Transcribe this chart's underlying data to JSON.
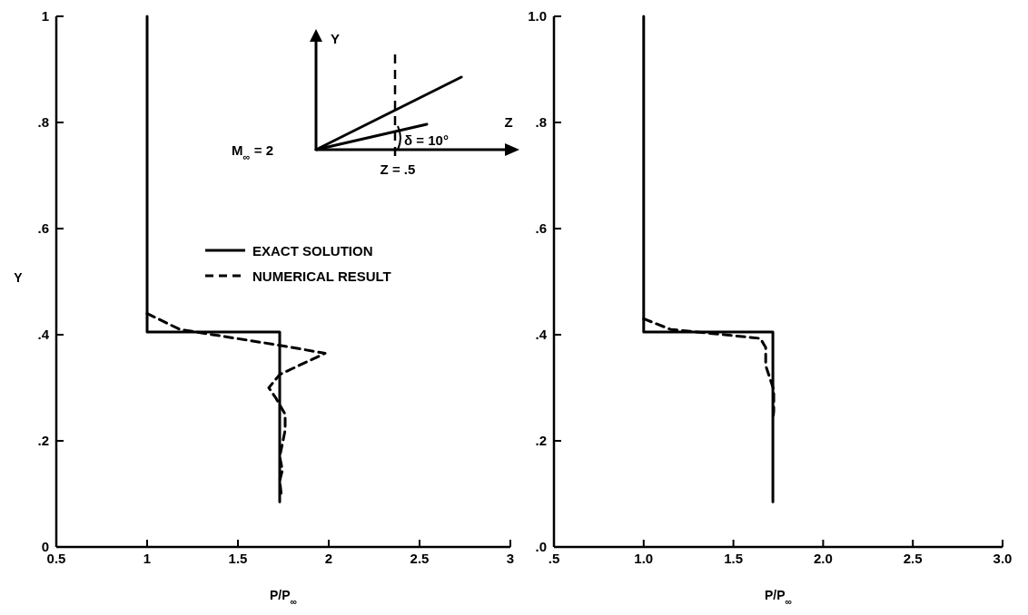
{
  "chart_data": [
    {
      "type": "line",
      "xlabel": "P/P$_{∞}$",
      "ylabel": "Y",
      "xlim": [
        0.5,
        3
      ],
      "ylim": [
        0,
        1
      ],
      "xticks": [
        0.5,
        1,
        1.5,
        2,
        2.5,
        3
      ],
      "yticks": [
        0,
        {
          "value": 0.2,
          "label": ".2"
        },
        {
          "value": 0.4,
          "label": ".4"
        },
        {
          "value": 0.6,
          "label": ".6"
        },
        {
          "value": 0.8,
          "label": ".8"
        },
        1
      ],
      "legend": "center",
      "annotations": [
        "Y",
        "Z",
        "M$_{∞}$ = 2",
        "δ = 10°",
        "Z = .5"
      ],
      "series": [
        {
          "name": "EXACT SOLUTION",
          "color": "#000000",
          "line_style": "solid",
          "x": [
            1,
            1,
            1.73,
            1.73
          ],
          "values": [
            1,
            0.405,
            0.405,
            0.085
          ]
        },
        {
          "name": "NUMERICAL RESULT",
          "color": "#000000",
          "line_style": "dashed",
          "x": [
            1,
            1.18,
            1.73,
            1.98,
            1.73,
            1.67,
            1.71,
            1.76,
            1.76,
            1.745,
            1.73,
            1.745,
            1.73,
            1.74
          ],
          "values": [
            0.44,
            0.41,
            0.38,
            0.365,
            0.325,
            0.3,
            0.28,
            0.25,
            0.22,
            0.195,
            0.17,
            0.145,
            0.125,
            0.095
          ]
        }
      ]
    },
    {
      "type": "line",
      "xlabel": "P/P$_{∞}$",
      "xlim": [
        0.5,
        3
      ],
      "ylim": [
        0,
        1
      ],
      "xticks": [
        {
          "value": 0.5,
          "label": ".5"
        },
        {
          "value": 1,
          "label": "1.0"
        },
        {
          "value": 1.5,
          "label": "1.5"
        },
        {
          "value": 2,
          "label": "2.0"
        },
        {
          "value": 2.5,
          "label": "2.5"
        },
        {
          "value": 3,
          "label": "3.0"
        }
      ],
      "yticks": [
        {
          "value": 0,
          "label": ".0"
        },
        {
          "value": 0.2,
          "label": ".2"
        },
        {
          "value": 0.4,
          "label": ".4"
        },
        {
          "value": 0.6,
          "label": ".6"
        },
        {
          "value": 0.8,
          "label": ".8"
        },
        {
          "value": 1,
          "label": "1.0"
        }
      ],
      "series": [
        {
          "color": "#000000",
          "line_style": "solid",
          "x": [
            1,
            1,
            1.72,
            1.72
          ],
          "values": [
            1,
            0.405,
            0.405,
            0.085
          ]
        },
        {
          "color": "#000000",
          "line_style": "dashed",
          "x": [
            1,
            1.15,
            1.45,
            1.65,
            1.68,
            1.68,
            1.725,
            1.725,
            1.72
          ],
          "values": [
            0.43,
            0.41,
            0.4,
            0.393,
            0.376,
            0.342,
            0.296,
            0.256,
            0.24
          ]
        }
      ]
    }
  ]
}
